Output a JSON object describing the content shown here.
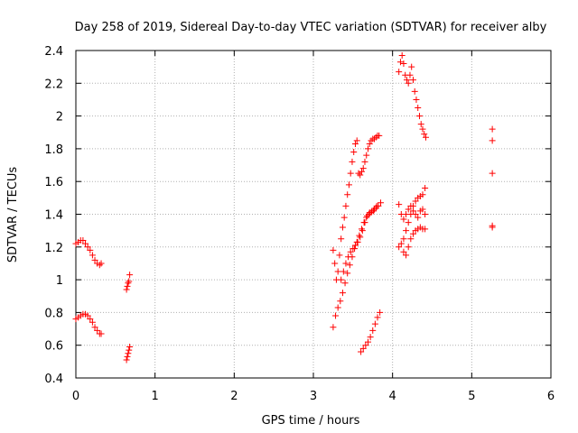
{
  "chart_data": {
    "type": "scatter",
    "title": "Day 258 of 2019, Sidereal Day-to-day VTEC variation (SDTVAR) for receiver alby",
    "xlabel": "GPS time / hours",
    "ylabel": "SDTVAR / TECUs",
    "xlim": [
      0,
      6
    ],
    "ylim": [
      0.4,
      2.4
    ],
    "grid": true,
    "xticks": [
      0,
      1,
      2,
      3,
      4,
      5,
      6
    ],
    "xtick_labels": [
      "0",
      "1",
      "2",
      "3",
      "4",
      "5",
      "6"
    ],
    "yticks": [
      0.4,
      0.6,
      0.8,
      1.0,
      1.2,
      1.4,
      1.6,
      1.8,
      2.0,
      2.2,
      2.4
    ],
    "ytick_labels": [
      "0.4",
      "0.6",
      "0.8",
      "1",
      "1.2",
      "1.4",
      "1.6",
      "1.8",
      "2",
      "2.2",
      "2.4"
    ],
    "marker": "+",
    "color": "#ff0000",
    "segments": [
      {
        "x": [
          0.0,
          0.03,
          0.06,
          0.09,
          0.12,
          0.15,
          0.18,
          0.21,
          0.24,
          0.27,
          0.3,
          0.32
        ],
        "y": [
          1.22,
          1.23,
          1.24,
          1.24,
          1.22,
          1.2,
          1.18,
          1.15,
          1.12,
          1.1,
          1.09,
          1.1
        ]
      },
      {
        "x": [
          0.0,
          0.03,
          0.06,
          0.09,
          0.12,
          0.15,
          0.18,
          0.21,
          0.24,
          0.27,
          0.3,
          0.32
        ],
        "y": [
          0.76,
          0.77,
          0.78,
          0.79,
          0.79,
          0.78,
          0.76,
          0.74,
          0.71,
          0.69,
          0.67,
          0.67
        ]
      },
      {
        "x": [
          0.64,
          0.65,
          0.66,
          0.67,
          0.68
        ],
        "y": [
          0.94,
          0.96,
          0.98,
          0.99,
          1.03
        ]
      },
      {
        "x": [
          0.64,
          0.65,
          0.66,
          0.67,
          0.68
        ],
        "y": [
          0.51,
          0.53,
          0.55,
          0.57,
          0.59
        ]
      },
      {
        "x": [
          3.25,
          3.27,
          3.29,
          3.31,
          3.33,
          3.35,
          3.37,
          3.39,
          3.41,
          3.43,
          3.45,
          3.47,
          3.49,
          3.51,
          3.53,
          3.55,
          3.57,
          3.59,
          3.61,
          3.63,
          3.65,
          3.67,
          3.69,
          3.71,
          3.73,
          3.75,
          3.77,
          3.79,
          3.81,
          3.83
        ],
        "y": [
          1.18,
          1.1,
          1.0,
          1.05,
          1.15,
          1.25,
          1.32,
          1.38,
          1.45,
          1.52,
          1.58,
          1.65,
          1.72,
          1.78,
          1.83,
          1.85,
          1.65,
          1.64,
          1.66,
          1.68,
          1.72,
          1.76,
          1.8,
          1.83,
          1.85,
          1.86,
          1.86,
          1.87,
          1.88,
          1.88
        ]
      },
      {
        "x": [
          3.25,
          3.28,
          3.31,
          3.34,
          3.37,
          3.4,
          3.43,
          3.46,
          3.49,
          3.52,
          3.55,
          3.58,
          3.61,
          3.64,
          3.67,
          3.7,
          3.73,
          3.76,
          3.79,
          3.82,
          3.85
        ],
        "y": [
          0.71,
          0.78,
          0.83,
          0.87,
          0.92,
          0.98,
          1.04,
          1.09,
          1.14,
          1.19,
          1.23,
          1.27,
          1.31,
          1.35,
          1.38,
          1.4,
          1.41,
          1.42,
          1.44,
          1.45,
          1.47
        ]
      },
      {
        "x": [
          3.35,
          3.38,
          3.41,
          3.44,
          3.47,
          3.5,
          3.53,
          3.56,
          3.59,
          3.62,
          3.65,
          3.68,
          3.71,
          3.74,
          3.77,
          3.8
        ],
        "y": [
          1.0,
          1.05,
          1.1,
          1.14,
          1.17,
          1.19,
          1.21,
          1.23,
          1.26,
          1.3,
          1.35,
          1.39,
          1.41,
          1.42,
          1.43,
          1.45
        ]
      },
      {
        "x": [
          3.6,
          3.63,
          3.66,
          3.69,
          3.72,
          3.75,
          3.78,
          3.81,
          3.84
        ],
        "y": [
          0.56,
          0.58,
          0.6,
          0.62,
          0.65,
          0.69,
          0.73,
          0.77,
          0.8
        ]
      },
      {
        "x": [
          4.08,
          4.1,
          4.12,
          4.14,
          4.16,
          4.18,
          4.2,
          4.22,
          4.24,
          4.26,
          4.28,
          4.3,
          4.32,
          4.34,
          4.36,
          4.38,
          4.4,
          4.42
        ],
        "y": [
          2.27,
          2.33,
          2.37,
          2.32,
          2.25,
          2.22,
          2.2,
          2.25,
          2.3,
          2.22,
          2.15,
          2.1,
          2.05,
          2.0,
          1.95,
          1.92,
          1.89,
          1.87
        ]
      },
      {
        "x": [
          4.08,
          4.11,
          4.14,
          4.17,
          4.2,
          4.23,
          4.26,
          4.29,
          4.32,
          4.35,
          4.38,
          4.41
        ],
        "y": [
          1.2,
          1.22,
          1.25,
          1.3,
          1.35,
          1.4,
          1.45,
          1.48,
          1.5,
          1.51,
          1.52,
          1.56
        ]
      },
      {
        "x": [
          4.08,
          4.11,
          4.14,
          4.17,
          4.2,
          4.23,
          4.26,
          4.29,
          4.32,
          4.35,
          4.38,
          4.41
        ],
        "y": [
          1.46,
          1.4,
          1.37,
          1.4,
          1.43,
          1.45,
          1.42,
          1.4,
          1.38,
          1.42,
          1.43,
          1.4
        ]
      },
      {
        "x": [
          4.14,
          4.17,
          4.2,
          4.23,
          4.26,
          4.29,
          4.32,
          4.35,
          4.38,
          4.41
        ],
        "y": [
          1.17,
          1.15,
          1.2,
          1.25,
          1.28,
          1.3,
          1.31,
          1.32,
          1.31,
          1.31
        ]
      },
      {
        "x": [
          5.26,
          5.26,
          5.26,
          5.26,
          5.26
        ],
        "y": [
          1.92,
          1.85,
          1.65,
          1.33,
          1.32
        ]
      }
    ]
  }
}
